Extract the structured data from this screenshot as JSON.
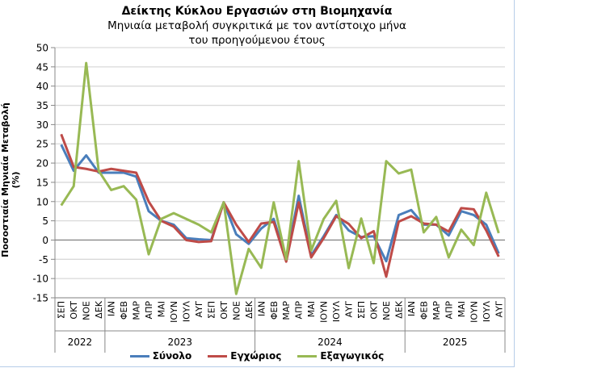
{
  "chart_data": {
    "type": "line",
    "title": "Δείκτης Κύκλου Εργασιών στη Βιομηχανία",
    "subtitle": [
      "Μηνιαία μεταβολή συγκριτικά με τον αντίστοιχο μήνα",
      "του προηγούμενου έτους"
    ],
    "ylabel": "Ποσοστιαία Μηνιαία Μεταβολή (%)",
    "ylim": [
      -15,
      50
    ],
    "yticks": [
      -15,
      -10,
      -5,
      0,
      5,
      10,
      15,
      20,
      25,
      30,
      35,
      40,
      45,
      50
    ],
    "grid": true,
    "legend": "bottom",
    "categories": [
      "ΣΕΠ",
      "ΟΚΤ",
      "ΝΟΕ",
      "ΔΕΚ",
      "ΙΑΝ",
      "ΦΕΒ",
      "ΜΑΡ",
      "ΑΠΡ",
      "ΜΑΙ",
      "ΙΟΥΝ",
      "ΙΟΥΛ",
      "ΑΥΓ",
      "ΣΕΠ",
      "ΟΚΤ",
      "ΝΟΕ",
      "ΔΕΚ",
      "ΙΑΝ",
      "ΦΕΒ",
      "ΜΑΡ",
      "ΑΠΡ",
      "ΜΑΙ",
      "ΙΟΥΝ",
      "ΙΟΥΛ",
      "ΑΥΓ",
      "ΣΕΠ",
      "ΟΚΤ",
      "ΝΟΕ",
      "ΔΕΚ",
      "ΙΑΝ",
      "ΦΕΒ",
      "ΜΑΡ",
      "ΑΠΡ",
      "ΜΑΙ",
      "ΙΟΥΝ",
      "ΙΟΥΛ",
      "ΑΥΓ"
    ],
    "years": [
      {
        "label": "2022",
        "months": 4
      },
      {
        "label": "2023",
        "months": 12
      },
      {
        "label": "2024",
        "months": 12
      },
      {
        "label": "2025",
        "months": 8
      }
    ],
    "series": [
      {
        "name": "Σύνολο",
        "color": "#4a7ebb",
        "values": [
          24.8,
          18,
          22,
          17.5,
          17.5,
          17.5,
          16.5,
          7.5,
          5,
          4,
          0.5,
          0.2,
          0,
          9.8,
          1.5,
          -1,
          3,
          5.5,
          -5,
          11.5,
          -4,
          1,
          6.5,
          2.5,
          0.8,
          1,
          -5.5,
          6.5,
          7.8,
          4,
          4,
          1.2,
          7.5,
          6.5,
          4,
          -3.5
        ]
      },
      {
        "name": "Εγχώριος",
        "color": "#be4b48",
        "values": [
          27.5,
          19,
          18.5,
          17.8,
          18.5,
          18,
          17.5,
          10,
          5,
          3.5,
          0,
          -0.5,
          -0.3,
          9.8,
          4,
          -0.5,
          4.3,
          4.7,
          -5.6,
          9.8,
          -4.5,
          0.5,
          6.2,
          4.2,
          0.5,
          2.3,
          -9.5,
          4.8,
          6.2,
          4.3,
          4,
          2.2,
          8.3,
          8,
          2.5,
          -4.3
        ]
      },
      {
        "name": "Εξαγωγικός",
        "color": "#98b954",
        "values": [
          9,
          14,
          46,
          18,
          13,
          14,
          10.5,
          -3.7,
          5.5,
          7,
          5.5,
          4,
          2,
          9.8,
          -14,
          -2.3,
          -7.2,
          9.8,
          -5,
          20.5,
          -2.7,
          5.5,
          10.2,
          -7.3,
          5.6,
          -6,
          20.5,
          17.3,
          18.3,
          2,
          6,
          -4.5,
          2.7,
          -1.3,
          12.3,
          1.8
        ]
      }
    ]
  }
}
